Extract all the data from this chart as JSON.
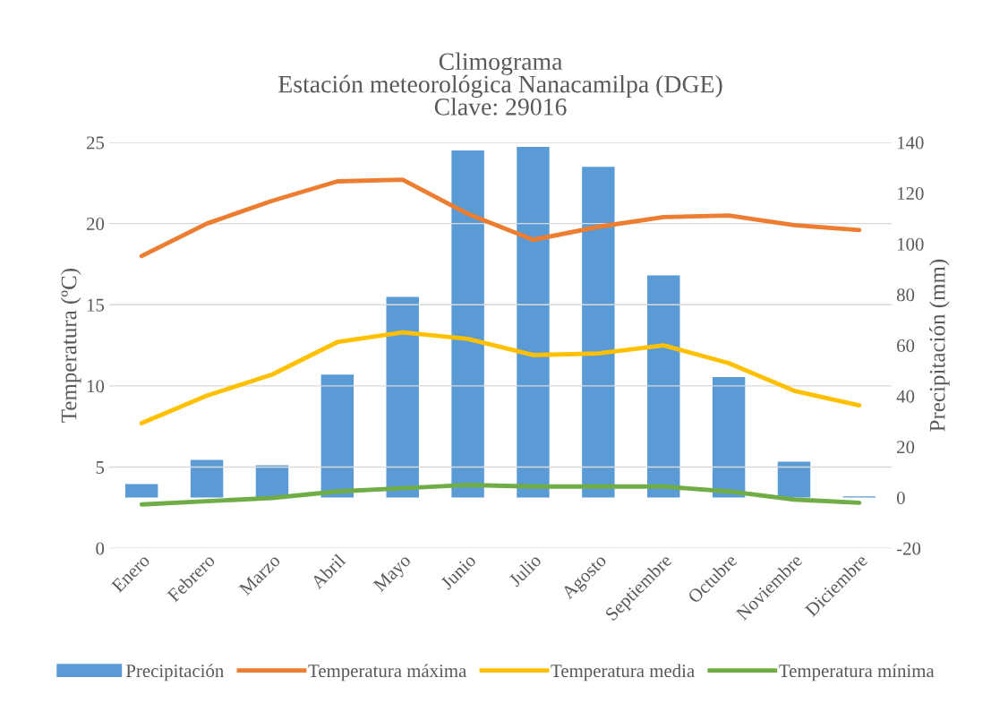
{
  "chart_data": {
    "type": "bar",
    "title": "Climograma\nEstación meteorológica Nanacamilpa (DGE)\nClave: 29016",
    "categories": [
      "Enero",
      "Febrero",
      "Marzo",
      "Abril",
      "Mayo",
      "Junio",
      "Julio",
      "Agosto",
      "Septiembre",
      "Octubre",
      "Noviembre",
      "Diciembre"
    ],
    "ylabel": "Temperatura (ºC)",
    "y2label": "Precipitación (mm)",
    "series": [
      {
        "name": "Precipitación",
        "axis": "y2",
        "color": "#5b9bd5",
        "values": [
          5.3,
          14.8,
          12.7,
          48.5,
          79.1,
          136.8,
          138.2,
          130.4,
          87.6,
          47.5,
          14.1,
          0.4
        ]
      },
      {
        "name": "Temperatura máxima",
        "type": "line",
        "color": "#ed7d31",
        "values": [
          18.0,
          20.0,
          21.4,
          22.6,
          22.7,
          20.6,
          19.0,
          19.8,
          20.4,
          20.5,
          19.9,
          19.6
        ]
      },
      {
        "name": "Temperatura media",
        "type": "line",
        "color": "#ffc000",
        "values": [
          7.7,
          9.4,
          10.7,
          12.7,
          13.3,
          12.9,
          11.9,
          12.0,
          12.5,
          11.4,
          9.7,
          8.8
        ]
      },
      {
        "name": "Temperatura mínima",
        "type": "line",
        "color": "#70ad47",
        "values": [
          2.7,
          2.9,
          3.1,
          3.5,
          3.7,
          3.9,
          3.8,
          3.8,
          3.8,
          3.5,
          3.0,
          2.8
        ]
      }
    ],
    "ylim": [
      0,
      25
    ],
    "yticks": [
      0,
      5,
      10,
      15,
      20,
      25
    ],
    "y2lim": [
      -20,
      140
    ],
    "y2ticks": [
      -20,
      0,
      20,
      40,
      60,
      80,
      100,
      120,
      140
    ],
    "grid": "y",
    "legend": "bottom",
    "marker": "none",
    "line_style": "solid"
  }
}
